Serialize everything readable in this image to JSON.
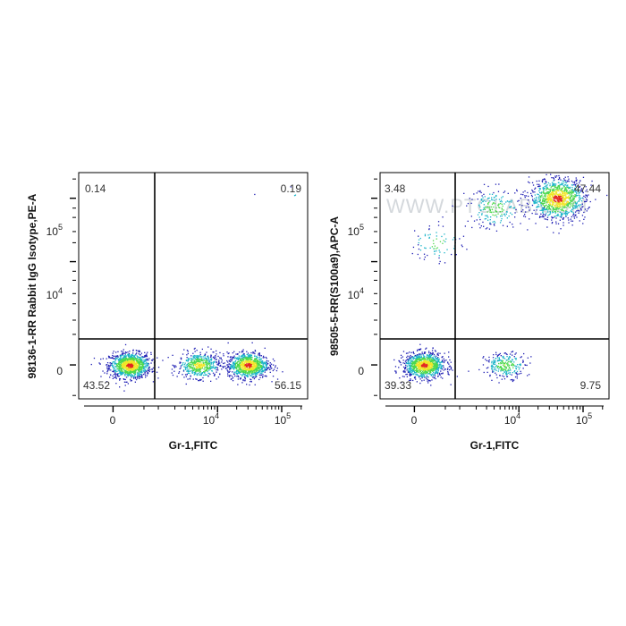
{
  "watermark": "WWW.PTGLAB.COM",
  "colors": {
    "density_low": "#1f1fb4",
    "density_mid": "#19b4c8",
    "density_midhigh": "#4cd84c",
    "density_high": "#f0e628",
    "density_peak": "#e3261f",
    "gate_line": "#000000",
    "frame": "#000000"
  },
  "chart_data": [
    {
      "type": "scatter",
      "xlabel": "Gr-1,FITC",
      "ylabel": "98136-1-RR Rabbit IgG Isotype,PE-A",
      "x_scale": "biexponential",
      "y_scale": "biexponential",
      "x_ticks": [
        "0",
        "10^4",
        "10^5"
      ],
      "y_ticks": [
        "0",
        "10^4",
        "10^5"
      ],
      "x_gate": 1500,
      "y_gate": 1500,
      "quadrants": {
        "upper_left": "0.14",
        "upper_right": "0.19",
        "lower_left": "43.52",
        "lower_right": "56.15"
      },
      "populations": [
        {
          "x_center": 200,
          "y_center": 0,
          "fraction": 0.42
        },
        {
          "x_center": 5000,
          "y_center": 0,
          "fraction": 0.2
        },
        {
          "x_center": 30000,
          "y_center": 0,
          "fraction": 0.36
        },
        {
          "x_center": 120000,
          "y_center": 90000,
          "fraction": 0.002
        }
      ]
    },
    {
      "type": "scatter",
      "xlabel": "Gr-1,FITC",
      "ylabel": "98505-5-RR(S100a9),APC-A",
      "x_scale": "biexponential",
      "y_scale": "biexponential",
      "x_ticks": [
        "0",
        "10^4",
        "10^5"
      ],
      "y_ticks": [
        "0",
        "10^4",
        "10^5"
      ],
      "x_gate": 1500,
      "y_gate": 1500,
      "quadrants": {
        "upper_left": "3.48",
        "upper_right": "47.44",
        "lower_left": "39.33",
        "lower_right": "9.75"
      },
      "populations": [
        {
          "x_center": 100,
          "y_center": 0,
          "fraction": 0.39
        },
        {
          "x_center": 6000,
          "y_center": 0,
          "fraction": 0.1
        },
        {
          "x_center": 40000,
          "y_center": 100000,
          "fraction": 0.4
        },
        {
          "x_center": 4000,
          "y_center": 70000,
          "fraction": 0.08
        },
        {
          "x_center": 300,
          "y_center": 20000,
          "fraction": 0.03
        }
      ]
    }
  ]
}
